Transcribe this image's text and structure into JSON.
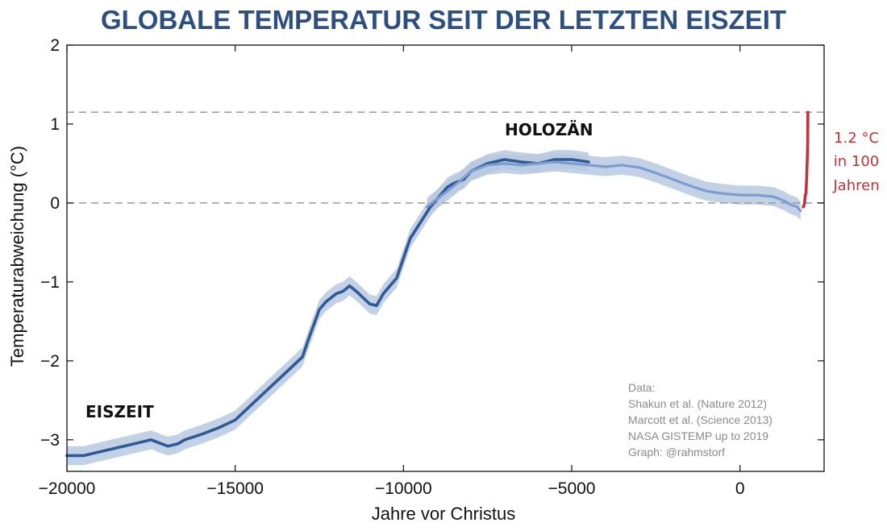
{
  "chart_data": {
    "type": "line",
    "title": "GLOBALE TEMPERATUR SEIT DER LETZTEN EISZEIT",
    "xlabel": "Jahre vor Christus",
    "ylabel": "Temperaturabweichung (°C)",
    "xlim": [
      -20000,
      2500
    ],
    "ylim": [
      -3.4,
      2
    ],
    "x_ticks": [
      -20000,
      -15000,
      -10000,
      -5000,
      0
    ],
    "x_tick_labels": [
      "−20000",
      "−15000",
      "−10000",
      "−5000",
      "0"
    ],
    "y_ticks": [
      2,
      1,
      0,
      -1,
      -2,
      -3
    ],
    "y_tick_labels": [
      "2",
      "1",
      "0",
      "−1",
      "−2",
      "−3"
    ],
    "grid": false,
    "reference_lines": [
      {
        "y": 1.15,
        "style": "dashed",
        "color": "#9a9a9a"
      },
      {
        "y": 0,
        "style": "dashed",
        "color": "#9a9a9a"
      }
    ],
    "series": [
      {
        "color": "#2f5a94",
        "band_color": "#b8c9e2",
        "band_halfwidth": 0.12,
        "x": [
          -20000,
          -19500,
          -19000,
          -18500,
          -18000,
          -17500,
          -17200,
          -17000,
          -16700,
          -16500,
          -16000,
          -15500,
          -15000,
          -14500,
          -14000,
          -13500,
          -13000,
          -12800,
          -12500,
          -12300,
          -12000,
          -11800,
          -11600,
          -11400,
          -11200,
          -11000,
          -10800,
          -10600,
          -10400,
          -10200,
          -10000,
          -9800,
          -9500,
          -9200,
          -9000,
          -8700,
          -8500,
          -8200,
          -8000,
          -7500,
          -7000,
          -6500,
          -6000,
          -5500,
          -5000,
          -4500
        ],
        "values": [
          -3.2,
          -3.2,
          -3.15,
          -3.1,
          -3.05,
          -3.0,
          -3.05,
          -3.08,
          -3.05,
          -3.0,
          -2.93,
          -2.85,
          -2.75,
          -2.55,
          -2.35,
          -2.15,
          -1.95,
          -1.7,
          -1.35,
          -1.25,
          -1.15,
          -1.12,
          -1.05,
          -1.12,
          -1.2,
          -1.28,
          -1.3,
          -1.15,
          -1.05,
          -0.95,
          -0.7,
          -0.45,
          -0.25,
          -0.05,
          0.05,
          0.2,
          0.25,
          0.3,
          0.4,
          0.5,
          0.55,
          0.52,
          0.5,
          0.55,
          0.55,
          0.52
        ]
      },
      {
        "color": "#7e9dcf",
        "band_color": "#b8c9e2",
        "band_halfwidth": 0.12,
        "x": [
          -9300,
          -9000,
          -8700,
          -8400,
          -8000,
          -7500,
          -7000,
          -6500,
          -6000,
          -5500,
          -5000,
          -4500,
          -4000,
          -3500,
          -3000,
          -2500,
          -2000,
          -1500,
          -1000,
          -500,
          0,
          500,
          1000,
          1300,
          1500,
          1700,
          1800
        ],
        "values": [
          -0.05,
          0.05,
          0.15,
          0.25,
          0.4,
          0.48,
          0.5,
          0.48,
          0.5,
          0.52,
          0.5,
          0.48,
          0.46,
          0.48,
          0.45,
          0.38,
          0.3,
          0.22,
          0.15,
          0.12,
          0.1,
          0.1,
          0.08,
          0.03,
          -0.02,
          -0.05,
          -0.1
        ]
      },
      {
        "color": "#c0343c",
        "band_color": null,
        "band_halfwidth": 0,
        "x": [
          1880,
          1900,
          1920,
          1940,
          1960,
          1980,
          1990,
          2000,
          2010,
          2019
        ],
        "values": [
          -0.05,
          -0.03,
          0.0,
          0.1,
          0.12,
          0.3,
          0.45,
          0.55,
          0.75,
          1.15
        ]
      }
    ],
    "annotations": [
      {
        "text": "EISZEIT"
      },
      {
        "text": "HOLOZÄN"
      }
    ],
    "red_annotation": [
      "1.2 °C",
      "in 100",
      "Jahren"
    ],
    "source_lines": [
      "Data:",
      "Shakun et al. (Nature 2012)",
      "Marcott et al. (Science 2013)",
      "NASA GISTEMP up to 2019",
      "Graph: @rahmstorf"
    ]
  }
}
